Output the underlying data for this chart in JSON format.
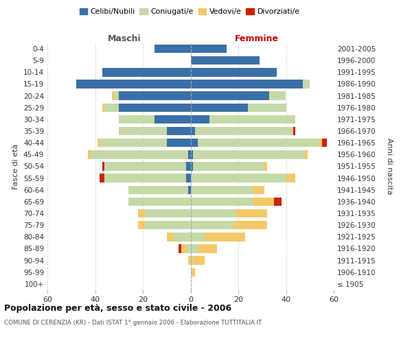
{
  "age_groups": [
    "100+",
    "95-99",
    "90-94",
    "85-89",
    "80-84",
    "75-79",
    "70-74",
    "65-69",
    "60-64",
    "55-59",
    "50-54",
    "45-49",
    "40-44",
    "35-39",
    "30-34",
    "25-29",
    "20-24",
    "15-19",
    "10-14",
    "5-9",
    "0-4"
  ],
  "birth_years": [
    "≤ 1905",
    "1906-1910",
    "1911-1915",
    "1916-1920",
    "1921-1925",
    "1926-1930",
    "1931-1935",
    "1936-1940",
    "1941-1945",
    "1946-1950",
    "1951-1955",
    "1956-1960",
    "1961-1965",
    "1966-1970",
    "1971-1975",
    "1976-1980",
    "1981-1985",
    "1986-1990",
    "1991-1995",
    "1996-2000",
    "2001-2005"
  ],
  "maschi_celibe": [
    0,
    0,
    0,
    0,
    0,
    0,
    0,
    0,
    1,
    2,
    2,
    1,
    10,
    10,
    15,
    30,
    30,
    48,
    37,
    0,
    15
  ],
  "maschi_coniugato": [
    0,
    0,
    0,
    2,
    7,
    19,
    19,
    26,
    25,
    34,
    34,
    41,
    28,
    20,
    15,
    6,
    2,
    0,
    0,
    0,
    0
  ],
  "maschi_vedovo": [
    0,
    0,
    1,
    2,
    3,
    3,
    3,
    0,
    0,
    0,
    0,
    1,
    1,
    0,
    0,
    1,
    1,
    0,
    0,
    0,
    0
  ],
  "maschi_divorziato": [
    0,
    0,
    0,
    1,
    0,
    0,
    0,
    0,
    0,
    2,
    1,
    0,
    0,
    0,
    0,
    0,
    0,
    0,
    0,
    0,
    0
  ],
  "femmine_celibe": [
    0,
    0,
    0,
    0,
    0,
    0,
    0,
    0,
    0,
    0,
    1,
    1,
    3,
    2,
    8,
    24,
    33,
    47,
    36,
    29,
    15
  ],
  "femmine_coniugata": [
    0,
    0,
    1,
    3,
    6,
    18,
    19,
    26,
    26,
    40,
    30,
    47,
    51,
    41,
    36,
    16,
    7,
    3,
    0,
    0,
    0
  ],
  "femmine_vedova": [
    0,
    2,
    5,
    8,
    17,
    14,
    13,
    9,
    5,
    4,
    1,
    1,
    1,
    0,
    0,
    0,
    0,
    0,
    0,
    0,
    0
  ],
  "femmine_divorziata": [
    0,
    0,
    0,
    0,
    0,
    0,
    0,
    3,
    0,
    0,
    0,
    0,
    2,
    1,
    0,
    0,
    0,
    0,
    0,
    0,
    0
  ],
  "colors": {
    "celibe": "#3a6fa8",
    "coniugato": "#c5d9a8",
    "vedovo": "#f5c96a",
    "divorziato": "#cc2200"
  },
  "xlim": 60,
  "title_main": "Popolazione per età, sesso e stato civile - 2006",
  "title_sub": "COMUNE DI CERENZIA (KR) - Dati ISTAT 1° gennaio 2006 - Elaborazione TUTTITALIA.IT",
  "ylabel_left": "Fasce di età",
  "ylabel_right": "Anni di nascita",
  "legend_labels": [
    "Celibi/Nubili",
    "Coniugati/e",
    "Vedovi/e",
    "Divorziati/e"
  ],
  "maschi_label": "Maschi",
  "femmine_label": "Femmine",
  "bg_color": "#ffffff",
  "grid_color": "#cccccc"
}
